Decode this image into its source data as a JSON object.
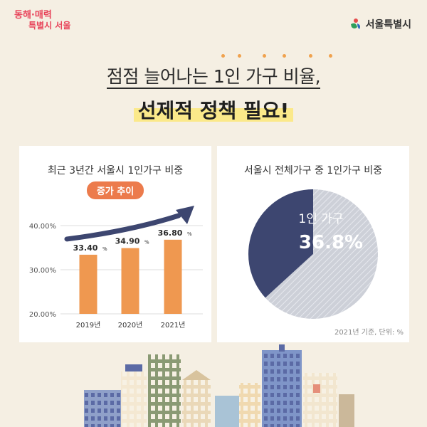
{
  "brand": {
    "left_line1": "동해·매력",
    "left_line2": "특별시 서울",
    "right_name": "서울특별시",
    "logo_icon": "seoul-emblem-icon"
  },
  "headline": {
    "line1": "점점 늘어나는 1인 가구 비율,",
    "line2": "선제적 정책 필요!"
  },
  "chart_data": [
    {
      "type": "bar",
      "title": "최근 3년간 서울시 1인가구 비중",
      "subtitle": "증가 추이",
      "categories": [
        "2019년",
        "2020년",
        "2021년"
      ],
      "values": [
        33.4,
        34.9,
        36.8
      ],
      "value_labels": [
        "33.40",
        "34.90",
        "36.80"
      ],
      "value_unit": "%",
      "yticks": [
        "20.00%",
        "30.00%",
        "40.00%"
      ],
      "ylim": [
        20,
        40
      ],
      "grid": true,
      "bar_color": "#ef9850"
    },
    {
      "type": "pie",
      "title": "서울시 전체가구 중 1인가구 비중",
      "slices": [
        {
          "label": "1인 가구",
          "value_label": "36.8%",
          "value": 36.8,
          "color": "#3d4670"
        },
        {
          "label": "",
          "value": 63.2,
          "color": "#cdd0d8"
        }
      ],
      "footnote": "2021년 기준, 단위: %"
    }
  ]
}
